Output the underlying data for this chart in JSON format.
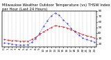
{
  "title": "Milwaukee Weather Outdoor Temperature (vs) THSW Index per Hour (Last 24 Hours)",
  "hours": [
    0,
    1,
    2,
    3,
    4,
    5,
    6,
    7,
    8,
    9,
    10,
    11,
    12,
    13,
    14,
    15,
    16,
    17,
    18,
    19,
    20,
    21,
    22,
    23
  ],
  "temp": [
    28,
    27,
    26,
    26,
    25,
    25,
    25,
    28,
    32,
    37,
    42,
    46,
    50,
    53,
    52,
    51,
    49,
    46,
    43,
    40,
    37,
    35,
    33,
    31
  ],
  "thsw": [
    22,
    21,
    20,
    19,
    18,
    18,
    19,
    23,
    30,
    40,
    52,
    62,
    71,
    76,
    72,
    64,
    57,
    49,
    42,
    36,
    31,
    28,
    26,
    24
  ],
  "temp_color": "#cc0000",
  "thsw_color": "#0000cc",
  "bg_color": "#ffffff",
  "grid_color": "#888888",
  "ylim": [
    15,
    80
  ],
  "yticks_right": [
    20,
    30,
    40,
    50,
    60,
    70,
    80
  ],
  "title_fontsize": 3.8,
  "tick_fontsize": 3.0,
  "line_width": 0.5,
  "marker_size": 0.8
}
